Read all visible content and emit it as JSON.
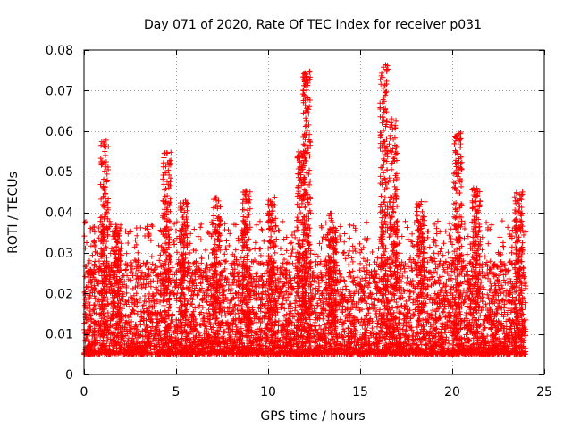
{
  "chart_data": {
    "type": "scatter",
    "title": "Day 071 of 2020, Rate Of TEC Index for receiver p031",
    "xlabel": "GPS time / hours",
    "ylabel": "ROTI / TECUs",
    "xlim": [
      0,
      25
    ],
    "ylim": [
      0,
      0.08
    ],
    "xticks": [
      0,
      5,
      10,
      15,
      20,
      25
    ],
    "xtick_labels": [
      "0",
      "5",
      "10",
      "15",
      "20",
      "25"
    ],
    "yticks": [
      0,
      0.01,
      0.02,
      0.03,
      0.04,
      0.05,
      0.06,
      0.07,
      0.08
    ],
    "ytick_labels": [
      "0",
      "0.01",
      "0.02",
      "0.03",
      "0.04",
      "0.05",
      "0.06",
      "0.07",
      "0.08"
    ],
    "grid": true,
    "marker": "+",
    "series": [
      {
        "name": "ROTI",
        "color": "#ff0000",
        "x_range": [
          0,
          24
        ],
        "baseline_range": [
          0.002,
          0.025
        ],
        "peaks": [
          {
            "x": 1.1,
            "y": 0.059
          },
          {
            "x": 1.8,
            "y": 0.037
          },
          {
            "x": 4.5,
            "y": 0.055
          },
          {
            "x": 5.4,
            "y": 0.043
          },
          {
            "x": 7.2,
            "y": 0.044
          },
          {
            "x": 8.8,
            "y": 0.046
          },
          {
            "x": 10.2,
            "y": 0.044
          },
          {
            "x": 11.8,
            "y": 0.056
          },
          {
            "x": 12.1,
            "y": 0.075
          },
          {
            "x": 13.5,
            "y": 0.04
          },
          {
            "x": 16.3,
            "y": 0.077
          },
          {
            "x": 16.8,
            "y": 0.063
          },
          {
            "x": 18.3,
            "y": 0.043
          },
          {
            "x": 20.3,
            "y": 0.06
          },
          {
            "x": 21.3,
            "y": 0.046
          },
          {
            "x": 23.6,
            "y": 0.045
          }
        ]
      }
    ]
  }
}
